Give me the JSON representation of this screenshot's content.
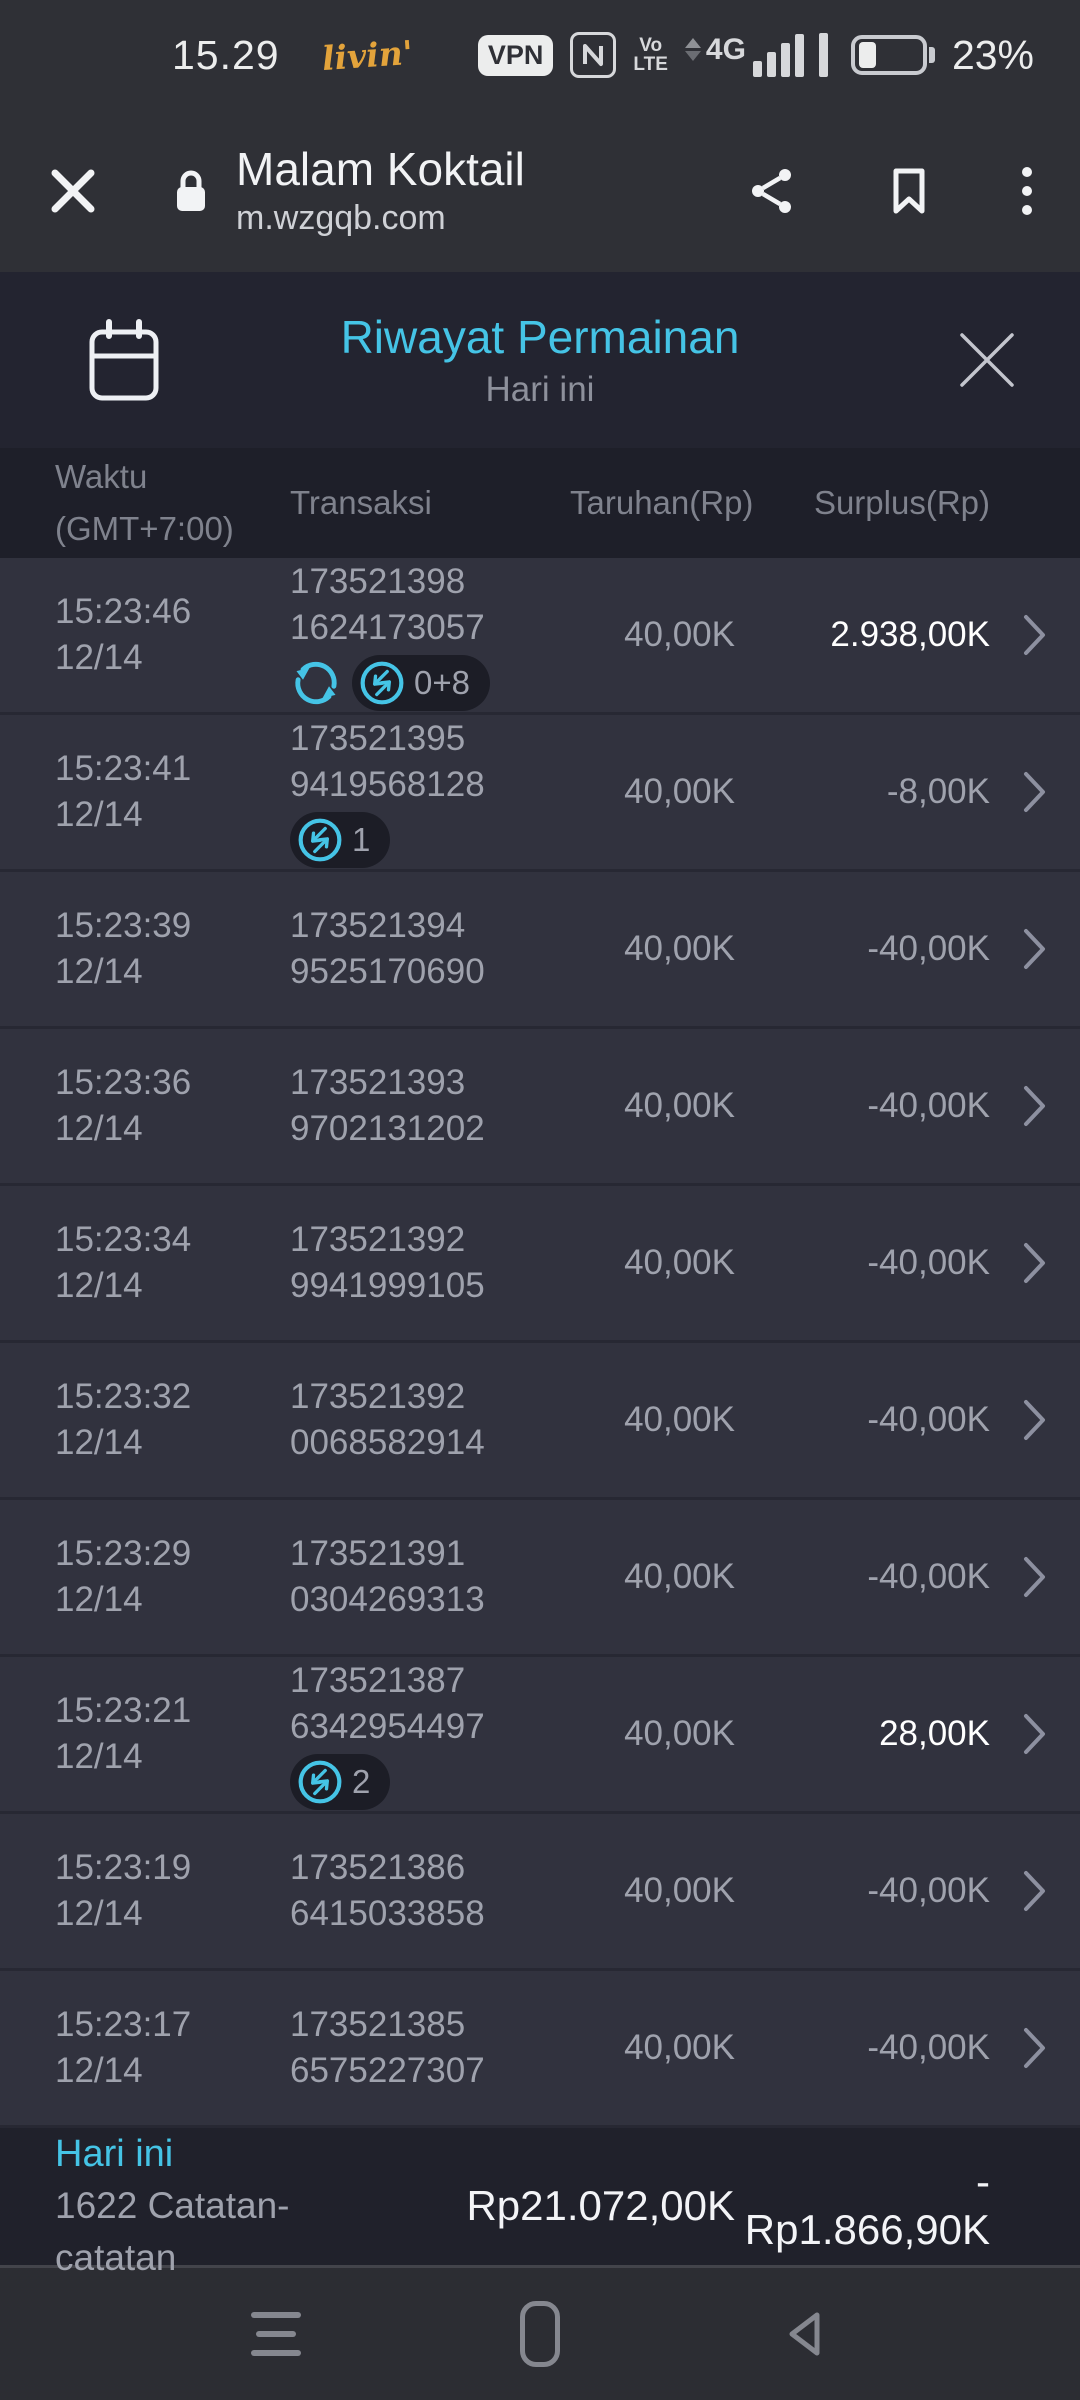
{
  "status_bar": {
    "time": "15.29",
    "livin_label": "livin'",
    "vpn_label": "VPN",
    "volte_line1": "Vo",
    "volte_line2": "LTE",
    "network_label": "4G",
    "battery_percent": "23%"
  },
  "browser": {
    "title": "Malam Koktail",
    "url": "m.wzgqb.com"
  },
  "modal": {
    "title": "Riwayat Permainan",
    "subtitle": "Hari ini"
  },
  "table": {
    "headers": {
      "time_line1": "Waktu",
      "time_line2": "(GMT+7:00)",
      "transaction": "Transaksi",
      "bet": "Taruhan(Rp)",
      "surplus": "Surplus(Rp)"
    },
    "rows": [
      {
        "time": "15:23:46",
        "date": "12/14",
        "txn1": "173521398",
        "txn2": "1624173057",
        "refresh": true,
        "badge": "0+8",
        "bet": "40,00K",
        "surplus": "2.938,00K",
        "positive": true
      },
      {
        "time": "15:23:41",
        "date": "12/14",
        "txn1": "173521395",
        "txn2": "9419568128",
        "refresh": false,
        "badge": "1",
        "bet": "40,00K",
        "surplus": "-8,00K",
        "positive": false
      },
      {
        "time": "15:23:39",
        "date": "12/14",
        "txn1": "173521394",
        "txn2": "9525170690",
        "refresh": false,
        "badge": null,
        "bet": "40,00K",
        "surplus": "-40,00K",
        "positive": false
      },
      {
        "time": "15:23:36",
        "date": "12/14",
        "txn1": "173521393",
        "txn2": "9702131202",
        "refresh": false,
        "badge": null,
        "bet": "40,00K",
        "surplus": "-40,00K",
        "positive": false
      },
      {
        "time": "15:23:34",
        "date": "12/14",
        "txn1": "173521392",
        "txn2": "9941999105",
        "refresh": false,
        "badge": null,
        "bet": "40,00K",
        "surplus": "-40,00K",
        "positive": false
      },
      {
        "time": "15:23:32",
        "date": "12/14",
        "txn1": "173521392",
        "txn2": "0068582914",
        "refresh": false,
        "badge": null,
        "bet": "40,00K",
        "surplus": "-40,00K",
        "positive": false
      },
      {
        "time": "15:23:29",
        "date": "12/14",
        "txn1": "173521391",
        "txn2": "0304269313",
        "refresh": false,
        "badge": null,
        "bet": "40,00K",
        "surplus": "-40,00K",
        "positive": false
      },
      {
        "time": "15:23:21",
        "date": "12/14",
        "txn1": "173521387",
        "txn2": "6342954497",
        "refresh": false,
        "badge": "2",
        "bet": "40,00K",
        "surplus": "28,00K",
        "positive": true
      },
      {
        "time": "15:23:19",
        "date": "12/14",
        "txn1": "173521386",
        "txn2": "6415033858",
        "refresh": false,
        "badge": null,
        "bet": "40,00K",
        "surplus": "-40,00K",
        "positive": false
      },
      {
        "time": "15:23:17",
        "date": "12/14",
        "txn1": "173521385",
        "txn2": "6575227307",
        "refresh": false,
        "badge": null,
        "bet": "40,00K",
        "surplus": "-40,00K",
        "positive": false
      }
    ]
  },
  "summary": {
    "period": "Hari ini",
    "records": "1622 Catatan-catatan",
    "total_bet": "Rp21.072,00K",
    "total_surplus": "-Rp1.866,90K"
  },
  "icons": {
    "chevron_right": "›",
    "list": [
      "close-icon",
      "lock-icon",
      "share-icon",
      "bookmark-icon",
      "kebab-menu-icon",
      "calendar-icon",
      "modal-close-icon",
      "refresh-icon",
      "swap-arrows-icon",
      "vpn-badge",
      "nfc-icon",
      "volte-icon",
      "signal-bars-icon",
      "battery-icon",
      "recents-icon",
      "home-icon",
      "back-icon"
    ]
  },
  "colors": {
    "accent_cyan": "#45c4e6",
    "positive_text": "#ffffff",
    "muted_text": "#9fa2ad",
    "row_bg": "#31323e",
    "modal_header_bg": "#232430",
    "table_header_bg": "#1e1f29",
    "summary_bg": "#20212b",
    "chrome_bg": "#2f3036",
    "badge_bg": "#1c1d26",
    "livin_yellow": "#e3a33b"
  }
}
